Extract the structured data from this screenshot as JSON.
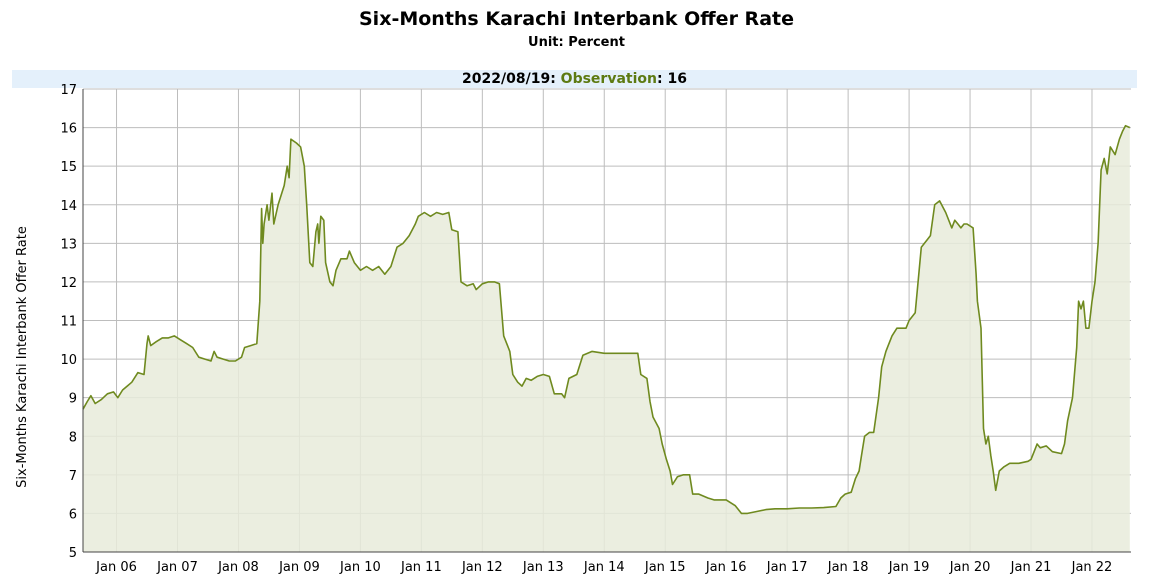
{
  "header": {
    "title": "Six-Months Karachi Interbank Offer Rate",
    "unit": "Unit: Percent"
  },
  "observation": {
    "date": "2022/08/19",
    "label": "Observation",
    "value": "16",
    "sep": ":"
  },
  "colors": {
    "line": "#6f8a1f",
    "fill": "#e8ebda",
    "grid": "#bdbdbd",
    "obs_bar": "#e4f0fb",
    "obs_text": "#5d7a12"
  },
  "chart_data": {
    "type": "area",
    "ylabel": "Six-Months Karachi Interbank Offer Rate",
    "xlabel": "",
    "ylim": [
      5,
      17
    ],
    "yticks": [
      5,
      6,
      7,
      8,
      9,
      10,
      11,
      12,
      13,
      14,
      15,
      16,
      17
    ],
    "xlim": [
      2005.45,
      2022.64
    ],
    "xticks": [
      {
        "label": "Jan 06",
        "value": 2006.0
      },
      {
        "label": "Jan 07",
        "value": 2007.0
      },
      {
        "label": "Jan 08",
        "value": 2008.0
      },
      {
        "label": "Jan 09",
        "value": 2009.0
      },
      {
        "label": "Jan 10",
        "value": 2010.0
      },
      {
        "label": "Jan 11",
        "value": 2011.0
      },
      {
        "label": "Jan 12",
        "value": 2012.0
      },
      {
        "label": "Jan 13",
        "value": 2013.0
      },
      {
        "label": "Jan 14",
        "value": 2014.0
      },
      {
        "label": "Jan 15",
        "value": 2015.0
      },
      {
        "label": "Jan 16",
        "value": 2016.0
      },
      {
        "label": "Jan 17",
        "value": 2017.0
      },
      {
        "label": "Jan 18",
        "value": 2018.0
      },
      {
        "label": "Jan 19",
        "value": 2019.0
      },
      {
        "label": "Jan 20",
        "value": 2020.0
      },
      {
        "label": "Jan 21",
        "value": 2021.0
      },
      {
        "label": "Jan 22",
        "value": 2022.0
      }
    ],
    "grid": true,
    "points": [
      [
        2005.45,
        8.7
      ],
      [
        2005.52,
        8.9
      ],
      [
        2005.58,
        9.05
      ],
      [
        2005.65,
        8.85
      ],
      [
        2005.75,
        8.95
      ],
      [
        2005.85,
        9.1
      ],
      [
        2005.95,
        9.15
      ],
      [
        2006.02,
        9.0
      ],
      [
        2006.1,
        9.2
      ],
      [
        2006.25,
        9.4
      ],
      [
        2006.35,
        9.65
      ],
      [
        2006.45,
        9.6
      ],
      [
        2006.5,
        10.4
      ],
      [
        2006.52,
        10.6
      ],
      [
        2006.56,
        10.35
      ],
      [
        2006.65,
        10.45
      ],
      [
        2006.75,
        10.55
      ],
      [
        2006.85,
        10.55
      ],
      [
        2006.95,
        10.6
      ],
      [
        2007.05,
        10.5
      ],
      [
        2007.15,
        10.4
      ],
      [
        2007.25,
        10.3
      ],
      [
        2007.35,
        10.05
      ],
      [
        2007.45,
        10.0
      ],
      [
        2007.55,
        9.95
      ],
      [
        2007.6,
        10.2
      ],
      [
        2007.65,
        10.05
      ],
      [
        2007.75,
        10.0
      ],
      [
        2007.85,
        9.95
      ],
      [
        2007.95,
        9.95
      ],
      [
        2008.05,
        10.05
      ],
      [
        2008.1,
        10.3
      ],
      [
        2008.2,
        10.35
      ],
      [
        2008.3,
        10.4
      ],
      [
        2008.35,
        11.5
      ],
      [
        2008.38,
        13.9
      ],
      [
        2008.4,
        13.0
      ],
      [
        2008.42,
        13.5
      ],
      [
        2008.47,
        14.0
      ],
      [
        2008.5,
        13.6
      ],
      [
        2008.55,
        14.3
      ],
      [
        2008.58,
        13.5
      ],
      [
        2008.65,
        14.0
      ],
      [
        2008.75,
        14.5
      ],
      [
        2008.8,
        15.0
      ],
      [
        2008.83,
        14.7
      ],
      [
        2008.86,
        15.7
      ],
      [
        2008.95,
        15.6
      ],
      [
        2009.02,
        15.5
      ],
      [
        2009.08,
        15.0
      ],
      [
        2009.12,
        14.0
      ],
      [
        2009.17,
        12.5
      ],
      [
        2009.22,
        12.4
      ],
      [
        2009.27,
        13.3
      ],
      [
        2009.3,
        13.5
      ],
      [
        2009.32,
        13.0
      ],
      [
        2009.35,
        13.7
      ],
      [
        2009.4,
        13.6
      ],
      [
        2009.43,
        12.5
      ],
      [
        2009.5,
        12.0
      ],
      [
        2009.55,
        11.9
      ],
      [
        2009.6,
        12.3
      ],
      [
        2009.68,
        12.6
      ],
      [
        2009.78,
        12.6
      ],
      [
        2009.82,
        12.8
      ],
      [
        2009.9,
        12.5
      ],
      [
        2010.0,
        12.3
      ],
      [
        2010.1,
        12.4
      ],
      [
        2010.2,
        12.3
      ],
      [
        2010.3,
        12.4
      ],
      [
        2010.4,
        12.2
      ],
      [
        2010.5,
        12.4
      ],
      [
        2010.6,
        12.9
      ],
      [
        2010.7,
        13.0
      ],
      [
        2010.8,
        13.2
      ],
      [
        2010.9,
        13.5
      ],
      [
        2010.95,
        13.7
      ],
      [
        2011.05,
        13.8
      ],
      [
        2011.15,
        13.7
      ],
      [
        2011.25,
        13.8
      ],
      [
        2011.35,
        13.75
      ],
      [
        2011.45,
        13.8
      ],
      [
        2011.5,
        13.35
      ],
      [
        2011.6,
        13.3
      ],
      [
        2011.65,
        12.0
      ],
      [
        2011.75,
        11.9
      ],
      [
        2011.85,
        11.95
      ],
      [
        2011.9,
        11.8
      ],
      [
        2012.0,
        11.95
      ],
      [
        2012.1,
        12.0
      ],
      [
        2012.2,
        12.0
      ],
      [
        2012.28,
        11.95
      ],
      [
        2012.35,
        10.6
      ],
      [
        2012.45,
        10.2
      ],
      [
        2012.5,
        9.6
      ],
      [
        2012.58,
        9.4
      ],
      [
        2012.65,
        9.3
      ],
      [
        2012.72,
        9.5
      ],
      [
        2012.8,
        9.45
      ],
      [
        2012.9,
        9.55
      ],
      [
        2013.0,
        9.6
      ],
      [
        2013.1,
        9.55
      ],
      [
        2013.18,
        9.1
      ],
      [
        2013.3,
        9.1
      ],
      [
        2013.35,
        9.0
      ],
      [
        2013.42,
        9.5
      ],
      [
        2013.55,
        9.6
      ],
      [
        2013.65,
        10.1
      ],
      [
        2013.8,
        10.2
      ],
      [
        2014.0,
        10.15
      ],
      [
        2014.2,
        10.15
      ],
      [
        2014.4,
        10.15
      ],
      [
        2014.55,
        10.15
      ],
      [
        2014.6,
        9.6
      ],
      [
        2014.7,
        9.5
      ],
      [
        2014.75,
        8.9
      ],
      [
        2014.8,
        8.5
      ],
      [
        2014.9,
        8.2
      ],
      [
        2014.95,
        7.8
      ],
      [
        2015.02,
        7.4
      ],
      [
        2015.08,
        7.1
      ],
      [
        2015.12,
        6.75
      ],
      [
        2015.2,
        6.95
      ],
      [
        2015.3,
        7.0
      ],
      [
        2015.4,
        7.0
      ],
      [
        2015.45,
        6.5
      ],
      [
        2015.55,
        6.5
      ],
      [
        2015.7,
        6.4
      ],
      [
        2015.8,
        6.35
      ],
      [
        2016.0,
        6.35
      ],
      [
        2016.15,
        6.2
      ],
      [
        2016.25,
        6.0
      ],
      [
        2016.35,
        6.0
      ],
      [
        2016.5,
        6.05
      ],
      [
        2016.65,
        6.1
      ],
      [
        2016.8,
        6.12
      ],
      [
        2017.0,
        6.12
      ],
      [
        2017.2,
        6.14
      ],
      [
        2017.4,
        6.14
      ],
      [
        2017.6,
        6.15
      ],
      [
        2017.8,
        6.18
      ],
      [
        2017.88,
        6.4
      ],
      [
        2017.95,
        6.5
      ],
      [
        2018.05,
        6.55
      ],
      [
        2018.12,
        6.9
      ],
      [
        2018.18,
        7.1
      ],
      [
        2018.22,
        7.5
      ],
      [
        2018.27,
        8.0
      ],
      [
        2018.35,
        8.1
      ],
      [
        2018.42,
        8.1
      ],
      [
        2018.5,
        9.0
      ],
      [
        2018.55,
        9.8
      ],
      [
        2018.62,
        10.2
      ],
      [
        2018.72,
        10.6
      ],
      [
        2018.8,
        10.8
      ],
      [
        2018.95,
        10.8
      ],
      [
        2019.0,
        11.0
      ],
      [
        2019.1,
        11.2
      ],
      [
        2019.2,
        12.9
      ],
      [
        2019.3,
        13.1
      ],
      [
        2019.35,
        13.2
      ],
      [
        2019.42,
        14.0
      ],
      [
        2019.5,
        14.1
      ],
      [
        2019.6,
        13.8
      ],
      [
        2019.7,
        13.4
      ],
      [
        2019.75,
        13.6
      ],
      [
        2019.8,
        13.5
      ],
      [
        2019.85,
        13.4
      ],
      [
        2019.9,
        13.5
      ],
      [
        2019.95,
        13.5
      ],
      [
        2020.05,
        13.4
      ],
      [
        2020.1,
        12.2
      ],
      [
        2020.12,
        11.5
      ],
      [
        2020.18,
        10.8
      ],
      [
        2020.22,
        8.2
      ],
      [
        2020.26,
        7.8
      ],
      [
        2020.3,
        8.0
      ],
      [
        2020.34,
        7.5
      ],
      [
        2020.38,
        7.1
      ],
      [
        2020.42,
        6.6
      ],
      [
        2020.48,
        7.1
      ],
      [
        2020.55,
        7.2
      ],
      [
        2020.65,
        7.3
      ],
      [
        2020.8,
        7.3
      ],
      [
        2020.95,
        7.35
      ],
      [
        2021.0,
        7.4
      ],
      [
        2021.05,
        7.6
      ],
      [
        2021.1,
        7.8
      ],
      [
        2021.15,
        7.7
      ],
      [
        2021.25,
        7.75
      ],
      [
        2021.35,
        7.6
      ],
      [
        2021.5,
        7.55
      ],
      [
        2021.55,
        7.8
      ],
      [
        2021.6,
        8.4
      ],
      [
        2021.68,
        9.0
      ],
      [
        2021.75,
        10.3
      ],
      [
        2021.78,
        11.5
      ],
      [
        2021.82,
        11.3
      ],
      [
        2021.86,
        11.5
      ],
      [
        2021.9,
        10.8
      ],
      [
        2021.95,
        10.8
      ],
      [
        2022.0,
        11.5
      ],
      [
        2022.05,
        12.0
      ],
      [
        2022.1,
        13.0
      ],
      [
        2022.15,
        14.9
      ],
      [
        2022.2,
        15.2
      ],
      [
        2022.25,
        14.8
      ],
      [
        2022.3,
        15.5
      ],
      [
        2022.38,
        15.3
      ],
      [
        2022.45,
        15.7
      ],
      [
        2022.5,
        15.9
      ],
      [
        2022.55,
        16.05
      ],
      [
        2022.62,
        16.0
      ]
    ]
  }
}
